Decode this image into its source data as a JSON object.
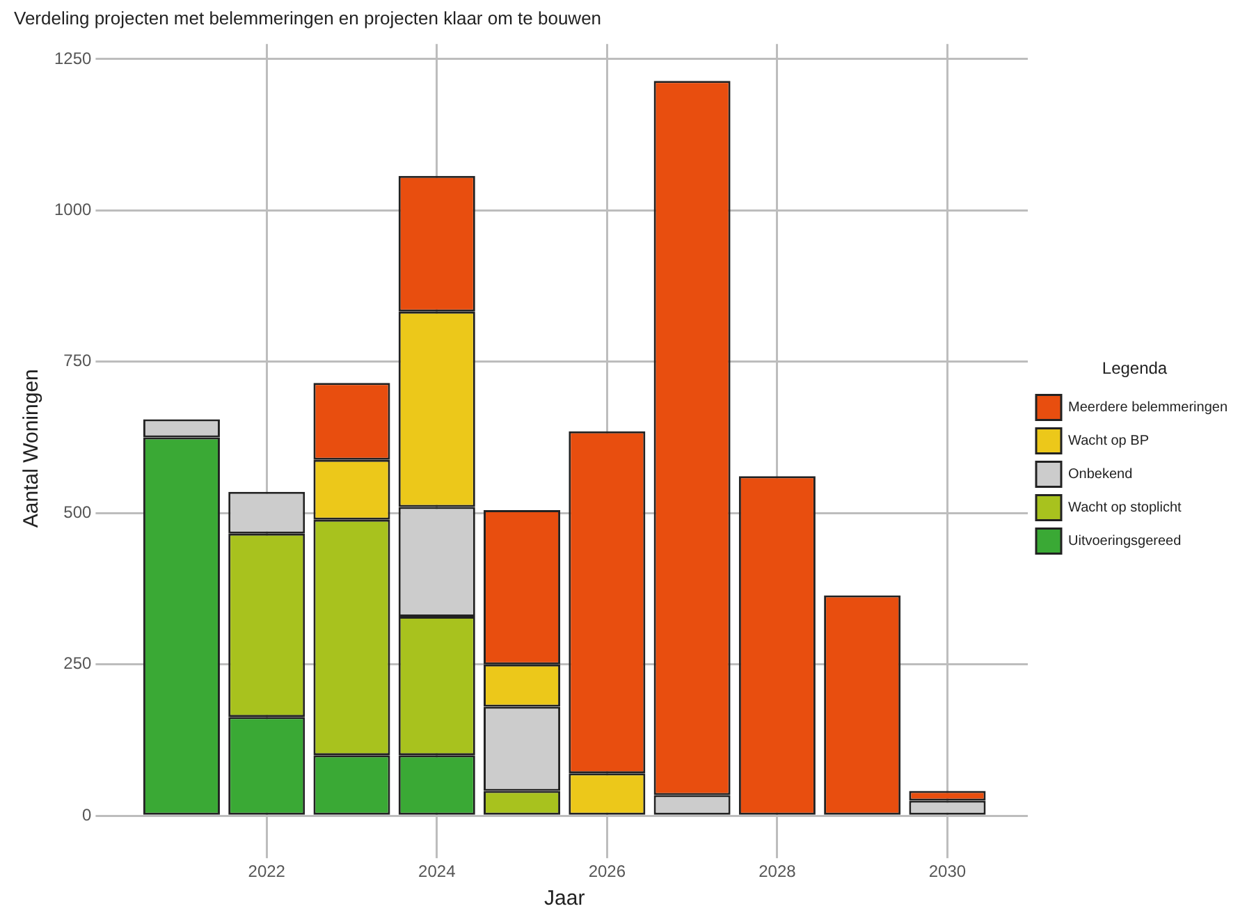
{
  "chart_data": {
    "type": "bar",
    "title": "Verdeling projecten met belemmeringen en projecten klaar om te bouwen",
    "xlabel": "Jaar",
    "ylabel": "Aantal Woningen",
    "legend_title": "Legenda",
    "stacked": true,
    "grid": true,
    "legend": "right",
    "x": [
      2021,
      2022,
      2023,
      2024,
      2025,
      2026,
      2027,
      2028,
      2029,
      2030
    ],
    "xlim": [
      2020.055,
      2030.945
    ],
    "xticks": [
      2022,
      2024,
      2026,
      2028,
      2030
    ],
    "ylim": [
      -61,
      1275
    ],
    "yticks": [
      0,
      250,
      500,
      750,
      1000,
      1250
    ],
    "series": [
      {
        "name": "Uitvoeringsgereed",
        "color": "#3aa935",
        "values": [
          625,
          163,
          100,
          100,
          0,
          0,
          0,
          0,
          0,
          0
        ]
      },
      {
        "name": "Wacht op stoplicht",
        "color": "#a8c21e",
        "values": [
          0,
          303,
          389,
          229,
          41,
          0,
          0,
          0,
          0,
          0
        ]
      },
      {
        "name": "Onbekend",
        "color": "#cccccc",
        "values": [
          30,
          69,
          0,
          181,
          139,
          0,
          34,
          0,
          0,
          25
        ]
      },
      {
        "name": "Wacht op BP",
        "color": "#ecc81a",
        "values": [
          0,
          0,
          99,
          323,
          70,
          70,
          0,
          0,
          0,
          0
        ]
      },
      {
        "name": "Meerdere belemmeringen",
        "color": "#e84e0f",
        "values": [
          0,
          0,
          127,
          224,
          255,
          565,
          1180,
          561,
          364,
          16
        ]
      }
    ]
  }
}
